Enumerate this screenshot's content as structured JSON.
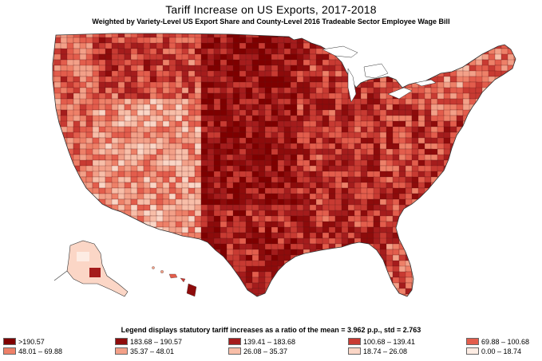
{
  "title": "Tariff Increase on US Exports, 2017-2018",
  "subtitle": "Weighted by Variety-Level US Export Share and County-Level 2016 Tradeable Sector Employee Wage Bill",
  "legend": {
    "note": "Legend displays  statutory tariff increases as a ratio of the mean = 3.962 p.p., std = 2.763",
    "items": [
      {
        "label": ">190.57",
        "color": "#7f0000"
      },
      {
        "label": "183.68 – 190.57",
        "color": "#8e0b0b"
      },
      {
        "label": "139.41 – 183.68",
        "color": "#a51c1c"
      },
      {
        "label": "100.68 – 139.41",
        "color": "#c83a32"
      },
      {
        "label": "69.88 – 100.68",
        "color": "#e35d4c"
      },
      {
        "label": "48.01 – 69.88",
        "color": "#ee8068"
      },
      {
        "label": "35.37 – 48.01",
        "color": "#f3a088"
      },
      {
        "label": "26.08 – 35.37",
        "color": "#f8bea8"
      },
      {
        "label": "18.74 – 26.08",
        "color": "#fbd6c6"
      },
      {
        "label": "0.00 – 18.74",
        "color": "#fdece3"
      }
    ]
  }
}
